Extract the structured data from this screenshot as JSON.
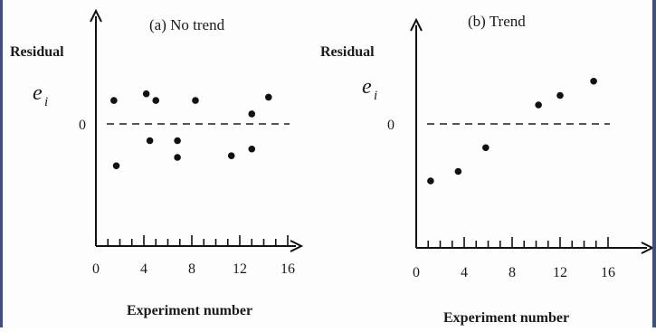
{
  "chart_data": [
    {
      "type": "scatter",
      "title": "(a) No trend",
      "ylabel": "Residual",
      "ysymbol": "e",
      "ysymbol_sub": "i",
      "xlabel": "Experiment number",
      "xticks": [
        "0",
        "4",
        "8",
        "12",
        "16"
      ],
      "xlim": [
        0,
        16
      ],
      "ylim": [
        -5,
        4
      ],
      "zero_label": "0",
      "reference_line": "dashed horizontal at 0",
      "grid": false,
      "points": [
        {
          "x": 1.5,
          "y": 1.4
        },
        {
          "x": 1.7,
          "y": -2.5
        },
        {
          "x": 4.2,
          "y": 1.8
        },
        {
          "x": 4.5,
          "y": -1.0
        },
        {
          "x": 5.0,
          "y": 1.4
        },
        {
          "x": 6.8,
          "y": -1.0
        },
        {
          "x": 6.8,
          "y": -2.0
        },
        {
          "x": 8.3,
          "y": 1.4
        },
        {
          "x": 11.3,
          "y": -1.9
        },
        {
          "x": 13.0,
          "y": 0.6
        },
        {
          "x": 13.0,
          "y": -1.5
        },
        {
          "x": 14.4,
          "y": 1.6
        }
      ]
    },
    {
      "type": "scatter",
      "title": "(b)  Trend",
      "ylabel": "Residual",
      "ysymbol": "e",
      "ysymbol_sub": "i",
      "xlabel": "Experiment number",
      "xticks": [
        "0",
        "4",
        "8",
        "12",
        "16"
      ],
      "xlim": [
        0,
        16
      ],
      "ylim": [
        -5,
        4
      ],
      "zero_label": "0",
      "reference_line": "dashed horizontal at 0",
      "grid": false,
      "points": [
        {
          "x": 1.2,
          "y": -3.6
        },
        {
          "x": 3.5,
          "y": -3.0
        },
        {
          "x": 5.8,
          "y": -1.5
        },
        {
          "x": 10.2,
          "y": 1.2
        },
        {
          "x": 12.0,
          "y": 1.8
        },
        {
          "x": 14.8,
          "y": 2.7
        }
      ]
    }
  ]
}
